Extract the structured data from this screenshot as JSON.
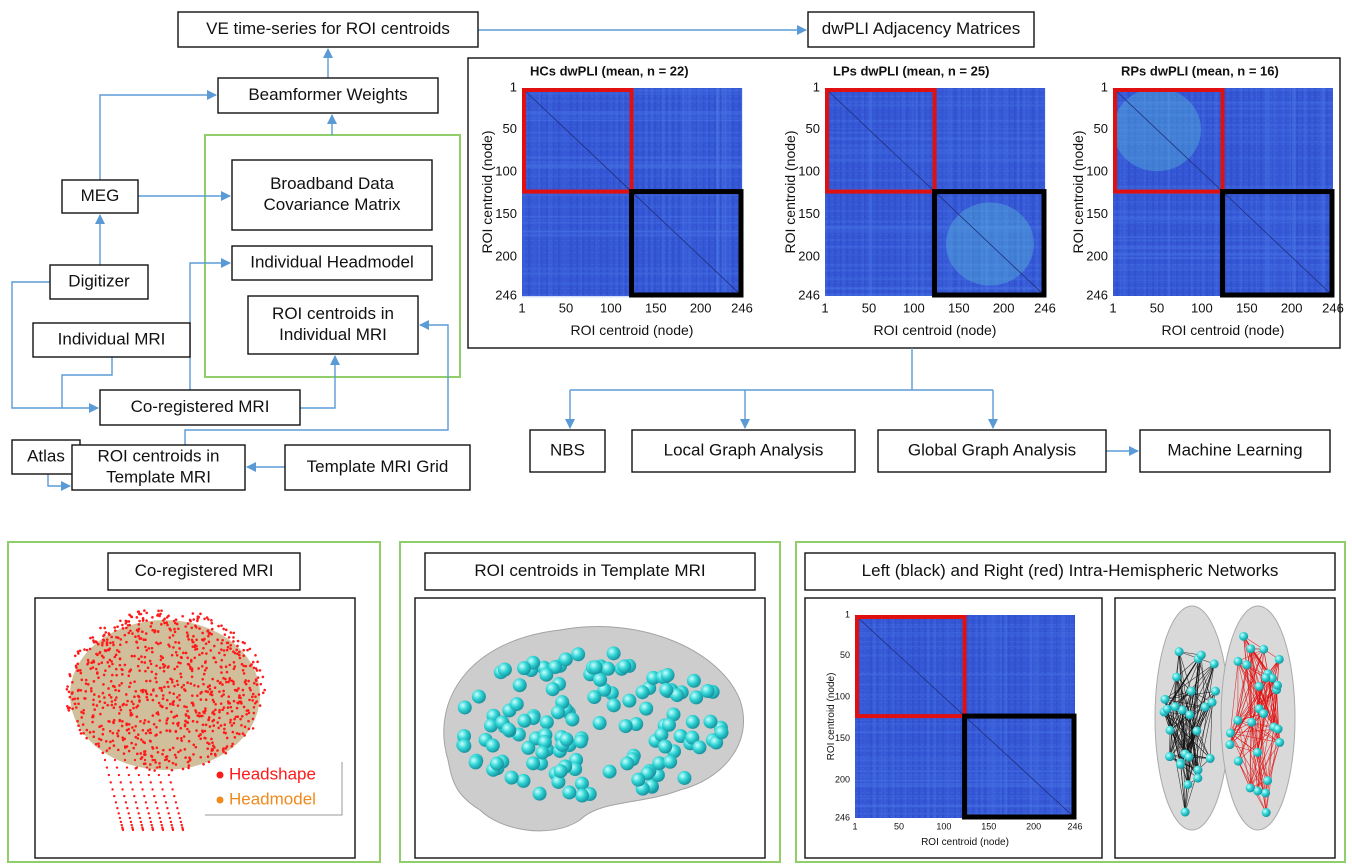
{
  "flowchart": {
    "nodes": [
      {
        "lines": [
          "VE time-series for ROI centroids"
        ]
      },
      {
        "lines": [
          "dwPLI Adjacency Matrices"
        ]
      },
      {
        "lines": [
          "Beamformer Weights"
        ]
      },
      {
        "lines": [
          "Broadband Data",
          "Covariance Matrix"
        ]
      },
      {
        "lines": [
          "MEG"
        ]
      },
      {
        "lines": [
          "Individual Headmodel"
        ]
      },
      {
        "lines": [
          "Digitizer"
        ]
      },
      {
        "lines": [
          "ROI centroids in",
          "Individual MRI"
        ]
      },
      {
        "lines": [
          "Individual MRI"
        ]
      },
      {
        "lines": [
          "Co-registered MRI"
        ]
      },
      {
        "lines": [
          "Atlas"
        ]
      },
      {
        "lines": [
          "ROI centroids in",
          "Template MRI"
        ]
      },
      {
        "lines": [
          "Template MRI Grid"
        ]
      }
    ]
  },
  "matrices_panel": {
    "matrices": [
      {
        "title": "HCs dwPLI (mean, n = 22)"
      },
      {
        "title": "LPs dwPLI (mean, n = 25)"
      },
      {
        "title": "RPs dwPLI (mean, n = 16)"
      }
    ],
    "tick_labels": [
      1,
      50,
      100,
      150,
      200,
      246
    ],
    "x_label": "ROI centroid (node)",
    "y_label": "ROI centroid (node)"
  },
  "analysis": [
    "NBS",
    "Local Graph Analysis",
    "Global Graph Analysis",
    "Machine Learning"
  ],
  "panels": [
    {
      "title": "Co-registered MRI",
      "legend": [
        "Headshape",
        "Headmodel"
      ]
    },
    {
      "title": "ROI centroids in Template MRI"
    },
    {
      "title": "Left (black) and Right (red) Intra-Hemispheric Networks"
    }
  ]
}
